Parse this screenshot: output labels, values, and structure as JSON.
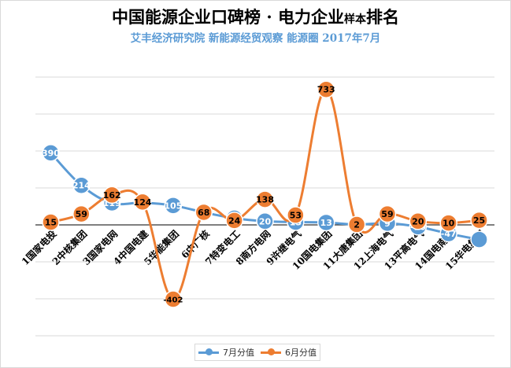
{
  "chart_data": {
    "type": "line",
    "title": "中国能源企业口碑榜 · 电力企业",
    "title_small": "样本",
    "title_end": "排名",
    "subtitle": "艾丰经济研究院 新能源经贸观察 能源圈 2017年7月",
    "categories": [
      "1国家电投",
      "2中核集团",
      "3国家电网",
      "4中国电建",
      "5华能集团",
      "6中广核",
      "7特变电工",
      "8南方电网",
      "9许继电气",
      "10国电集团",
      "11大唐集团",
      "12上海电气",
      "13平高电气",
      "14国电南自",
      "15华电集团"
    ],
    "series": [
      {
        "name": "7月分值",
        "color": "#5b9bd5",
        "values": [
          390,
          214,
          119,
          120,
          105,
          68,
          36,
          20,
          15,
          13,
          2,
          9,
          -10,
          -47,
          -79
        ],
        "labels": [
          "390",
          "214",
          "119",
          "120",
          "105",
          "",
          "36",
          "20",
          "15",
          "13",
          "2",
          "9",
          "-10",
          "-47",
          ""
        ]
      },
      {
        "name": "6月分值",
        "color": "#ed7d31",
        "values": [
          15,
          59,
          162,
          124,
          -402,
          68,
          24,
          138,
          53,
          733,
          2,
          59,
          20,
          10,
          25
        ],
        "labels": [
          "15",
          "59",
          "162",
          "124",
          "-402",
          "68",
          "24",
          "138",
          "53",
          "733",
          "2",
          "59",
          "20",
          "10",
          "25"
        ]
      }
    ],
    "ylim": [
      -600,
      800
    ],
    "grid": true,
    "legend": "bottom"
  }
}
